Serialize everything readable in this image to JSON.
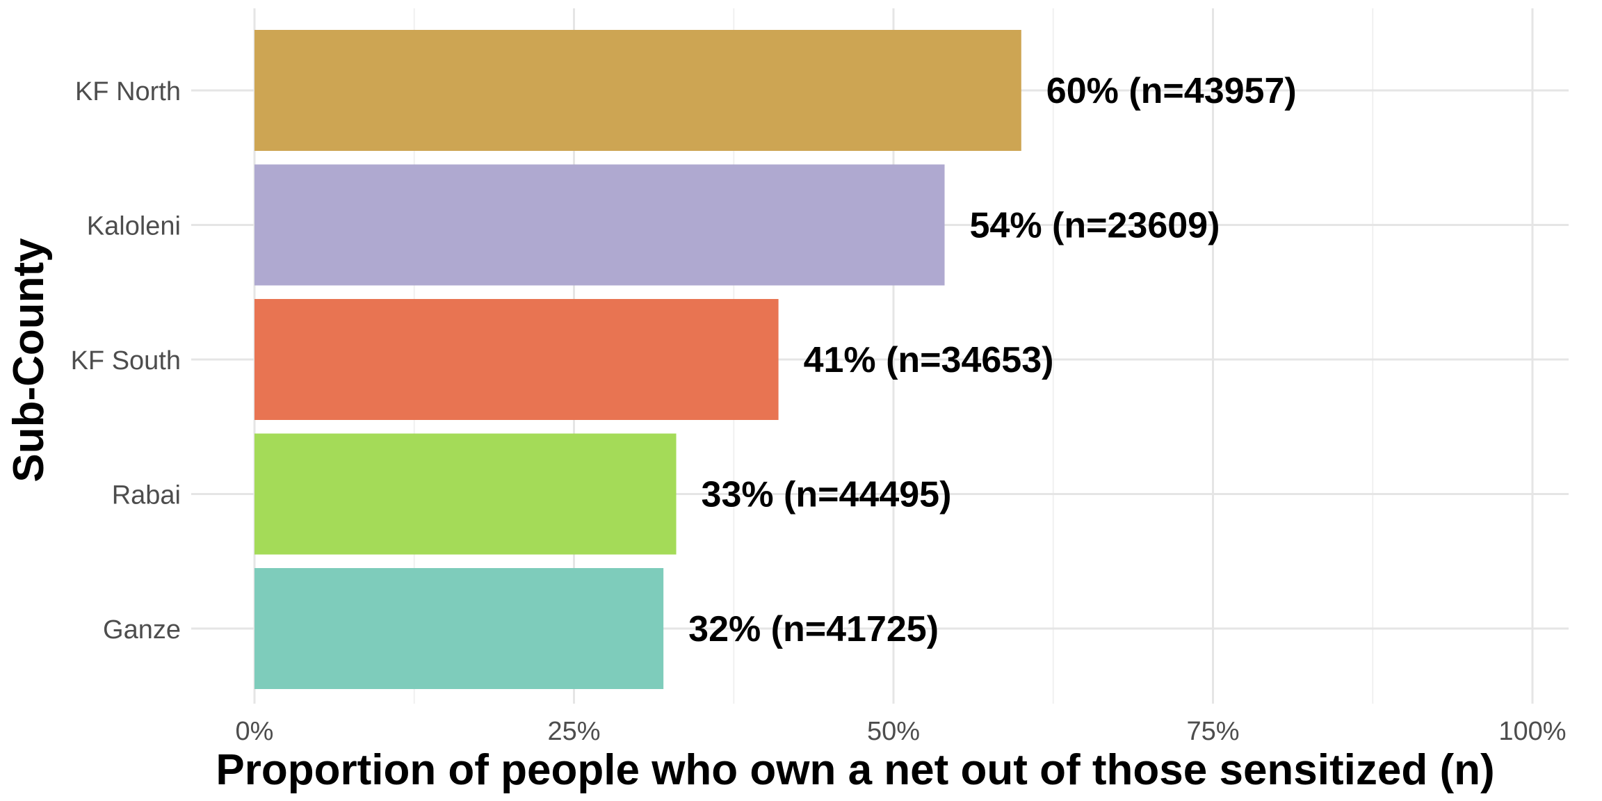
{
  "chart_data": {
    "type": "bar",
    "orientation": "horizontal",
    "xlabel": "Proportion of people who own a net out of those sensitized (n)",
    "ylabel": "Sub-County",
    "xlim": [
      0,
      100
    ],
    "x_ticks": [
      "0%",
      "25%",
      "50%",
      "75%",
      "100%"
    ],
    "categories": [
      "KF North",
      "Kaloleni",
      "KF South",
      "Rabai",
      "Ganze"
    ],
    "values": [
      60,
      54,
      41,
      33,
      32
    ],
    "n": [
      43957,
      23609,
      34653,
      44495,
      41725
    ],
    "data_labels": [
      "60% (n=43957)",
      "54% (n=23609)",
      "41% (n=34653)",
      "33% (n=44495)",
      "32% (n=41725)"
    ],
    "colors": [
      "#CDA553",
      "#AFA9D0",
      "#E87452",
      "#A4DB58",
      "#7ECCBB"
    ],
    "grid": true,
    "legend": "none"
  }
}
